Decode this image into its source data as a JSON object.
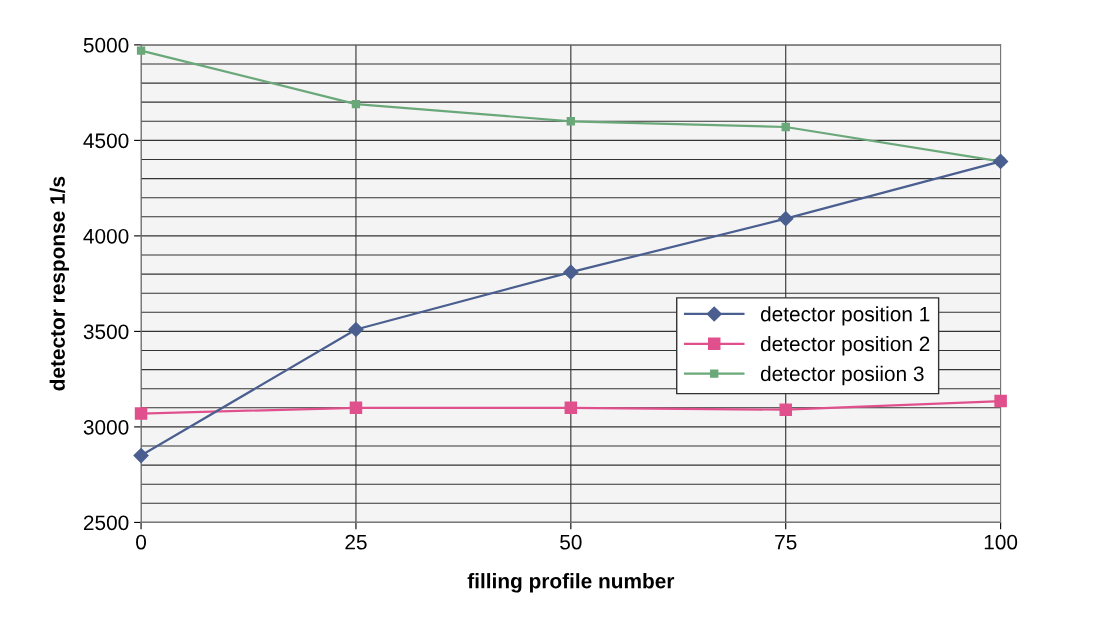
{
  "chart_data": {
    "type": "line",
    "xlabel": "filling profile number",
    "ylabel": "detector response 1/s",
    "x": [
      0,
      25,
      50,
      75,
      100
    ],
    "series": [
      {
        "name": "detector position 1",
        "color": "#4a5f8f",
        "marker": "diamond",
        "values": [
          2850,
          3510,
          3810,
          4090,
          4390
        ]
      },
      {
        "name": "detector position 2",
        "color": "#e0508c",
        "marker": "square",
        "values": [
          3070,
          3100,
          3100,
          3090,
          3135
        ]
      },
      {
        "name": "detector posiion 3",
        "color": "#6aa87a",
        "marker": "square",
        "values": [
          4970,
          4690,
          4600,
          4570,
          4390
        ]
      }
    ],
    "xlim": [
      0,
      100
    ],
    "xticks": [
      0,
      25,
      50,
      75,
      100
    ],
    "ylim": [
      2500,
      5000
    ],
    "yticks": [
      2500,
      {
        "value": 2600,
        "label": null
      },
      {
        "value": 2700,
        "label": null
      },
      {
        "value": 2800,
        "label": null
      },
      {
        "value": 2900,
        "label": null
      },
      3000,
      {
        "value": 3100,
        "label": null
      },
      {
        "value": 3200,
        "label": null
      },
      {
        "value": 3300,
        "label": null
      },
      {
        "value": 3400,
        "label": null
      },
      3500,
      {
        "value": 3600,
        "label": null
      },
      {
        "value": 3700,
        "label": null
      },
      {
        "value": 3800,
        "label": null
      },
      {
        "value": 3900,
        "label": null
      },
      4000,
      {
        "value": 4100,
        "label": null
      },
      {
        "value": 4200,
        "label": null
      },
      {
        "value": 4300,
        "label": null
      },
      {
        "value": 4400,
        "label": null
      },
      4500,
      {
        "value": 4600,
        "label": null
      },
      {
        "value": 4700,
        "label": null
      },
      {
        "value": 4800,
        "label": null
      },
      {
        "value": 4900,
        "label": null
      },
      5000
    ],
    "grid": true,
    "legend": "right",
    "line_style": "solid"
  }
}
